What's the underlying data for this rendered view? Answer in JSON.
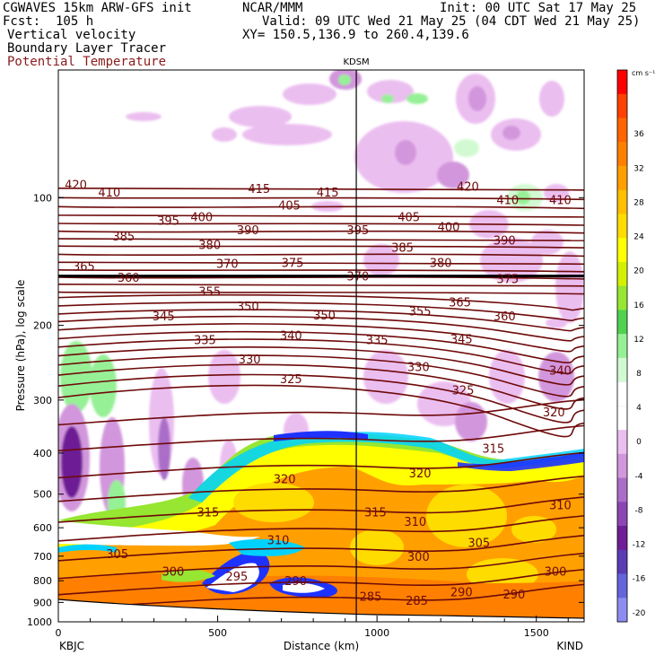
{
  "header": {
    "model": "CGWAVES 15km ARW-GFS init",
    "org": "NCAR/MMM",
    "init": "Init: 00 UTC Sat 17 May 25",
    "fcst": "Fcst:  105 h",
    "valid": "Valid: 09 UTC Wed 21 May 25 (04 CDT Wed 21 May 25)",
    "field1": "Vertical velocity",
    "field2": "Boundary Layer Tracer",
    "field3": "Potential Temperature",
    "xy": "XY= 150.5,136.9 to 260.4,139.6"
  },
  "colors": {
    "theta": "#6e0a0a",
    "header_dark": "#8b1a1a"
  },
  "chart_data": {
    "type": "heatmap",
    "xlabel": "Distance (km)",
    "ylabel": "Pressure (hPa), log scale",
    "xlim": [
      0,
      1650
    ],
    "ylim": [
      1000,
      50
    ],
    "log_y": true,
    "x_ticks": [
      "0",
      "500",
      "1000",
      "1500"
    ],
    "y_ticks": [
      "100",
      "200",
      "300",
      "400",
      "500",
      "600",
      "700",
      "800",
      "900",
      "1000"
    ],
    "station_left": "KBJC",
    "station_right": "KIND",
    "marker_label": "KDSM",
    "marker_x": 935,
    "colorbar": {
      "units": "cm s⁻¹",
      "labels": [
        "36",
        "32",
        "28",
        "24",
        "20",
        "16",
        "12",
        "8",
        "4",
        "0",
        "-4",
        "-8",
        "-12",
        "-16",
        "-20"
      ],
      "colors": [
        "#ff0000",
        "#ff4000",
        "#ff6400",
        "#ff8000",
        "#ffa000",
        "#ffbe00",
        "#ffdc00",
        "#ffff00",
        "#d2f000",
        "#96e632",
        "#50d250",
        "#96f096",
        "#d2fad2",
        "#ffffff",
        "#ffffff",
        "#ebbef0",
        "#d296dc",
        "#aa6ec8",
        "#8c46b4",
        "#6e1e96",
        "#5a3cb4",
        "#6464dc",
        "#8c8cf0"
      ]
    },
    "theta_labels": [
      {
        "t": "420",
        "x": 55,
        "p": 93
      },
      {
        "t": "410",
        "x": 160,
        "p": 97
      },
      {
        "t": "415",
        "x": 630,
        "p": 95
      },
      {
        "t": "415",
        "x": 845,
        "p": 97
      },
      {
        "t": "420",
        "x": 1285,
        "p": 94
      },
      {
        "t": "410",
        "x": 1410,
        "p": 101
      },
      {
        "t": "410",
        "x": 1575,
        "p": 101
      },
      {
        "t": "405",
        "x": 725,
        "p": 104
      },
      {
        "t": "405",
        "x": 1100,
        "p": 111
      },
      {
        "t": "400",
        "x": 450,
        "p": 111
      },
      {
        "t": "400",
        "x": 1225,
        "p": 117
      },
      {
        "t": "395",
        "x": 345,
        "p": 113
      },
      {
        "t": "395",
        "x": 940,
        "p": 119
      },
      {
        "t": "390",
        "x": 595,
        "p": 119
      },
      {
        "t": "390",
        "x": 1400,
        "p": 126
      },
      {
        "t": "385",
        "x": 205,
        "p": 123
      },
      {
        "t": "385",
        "x": 1080,
        "p": 131
      },
      {
        "t": "380",
        "x": 475,
        "p": 129
      },
      {
        "t": "380",
        "x": 1200,
        "p": 142
      },
      {
        "t": "375",
        "x": 735,
        "p": 142
      },
      {
        "t": "375",
        "x": 1410,
        "p": 155
      },
      {
        "t": "370",
        "x": 530,
        "p": 143
      },
      {
        "t": "370",
        "x": 940,
        "p": 153
      },
      {
        "t": "365",
        "x": 80,
        "p": 145
      },
      {
        "t": "365",
        "x": 1260,
        "p": 176
      },
      {
        "t": "360",
        "x": 220,
        "p": 154
      },
      {
        "t": "360",
        "x": 1400,
        "p": 190
      },
      {
        "t": "355",
        "x": 475,
        "p": 166
      },
      {
        "t": "355",
        "x": 1135,
        "p": 185
      },
      {
        "t": "350",
        "x": 595,
        "p": 180
      },
      {
        "t": "350",
        "x": 835,
        "p": 189
      },
      {
        "t": "345",
        "x": 330,
        "p": 190
      },
      {
        "t": "345",
        "x": 1265,
        "p": 215
      },
      {
        "t": "340",
        "x": 730,
        "p": 211
      },
      {
        "t": "340",
        "x": 1575,
        "p": 255
      },
      {
        "t": "335",
        "x": 460,
        "p": 216
      },
      {
        "t": "335",
        "x": 1000,
        "p": 216
      },
      {
        "t": "330",
        "x": 600,
        "p": 240
      },
      {
        "t": "330",
        "x": 1130,
        "p": 250
      },
      {
        "t": "325",
        "x": 730,
        "p": 267
      },
      {
        "t": "325",
        "x": 1270,
        "p": 284
      },
      {
        "t": "320",
        "x": 1555,
        "p": 320
      },
      {
        "t": "320",
        "x": 710,
        "p": 460
      },
      {
        "t": "320",
        "x": 1135,
        "p": 445
      },
      {
        "t": "315",
        "x": 1365,
        "p": 390
      },
      {
        "t": "315",
        "x": 470,
        "p": 550
      },
      {
        "t": "315",
        "x": 995,
        "p": 550
      },
      {
        "t": "310",
        "x": 1575,
        "p": 530
      },
      {
        "t": "310",
        "x": 1120,
        "p": 580
      },
      {
        "t": "310",
        "x": 690,
        "p": 640
      },
      {
        "t": "305",
        "x": 185,
        "p": 690
      },
      {
        "t": "305",
        "x": 1320,
        "p": 650
      },
      {
        "t": "300",
        "x": 360,
        "p": 760
      },
      {
        "t": "300",
        "x": 1130,
        "p": 700
      },
      {
        "t": "300",
        "x": 1560,
        "p": 760
      },
      {
        "t": "295",
        "x": 560,
        "p": 780
      },
      {
        "t": "290",
        "x": 745,
        "p": 800
      },
      {
        "t": "290",
        "x": 1265,
        "p": 850
      },
      {
        "t": "290",
        "x": 1430,
        "p": 860
      },
      {
        "t": "285",
        "x": 980,
        "p": 870
      },
      {
        "t": "285",
        "x": 1125,
        "p": 890
      }
    ]
  }
}
